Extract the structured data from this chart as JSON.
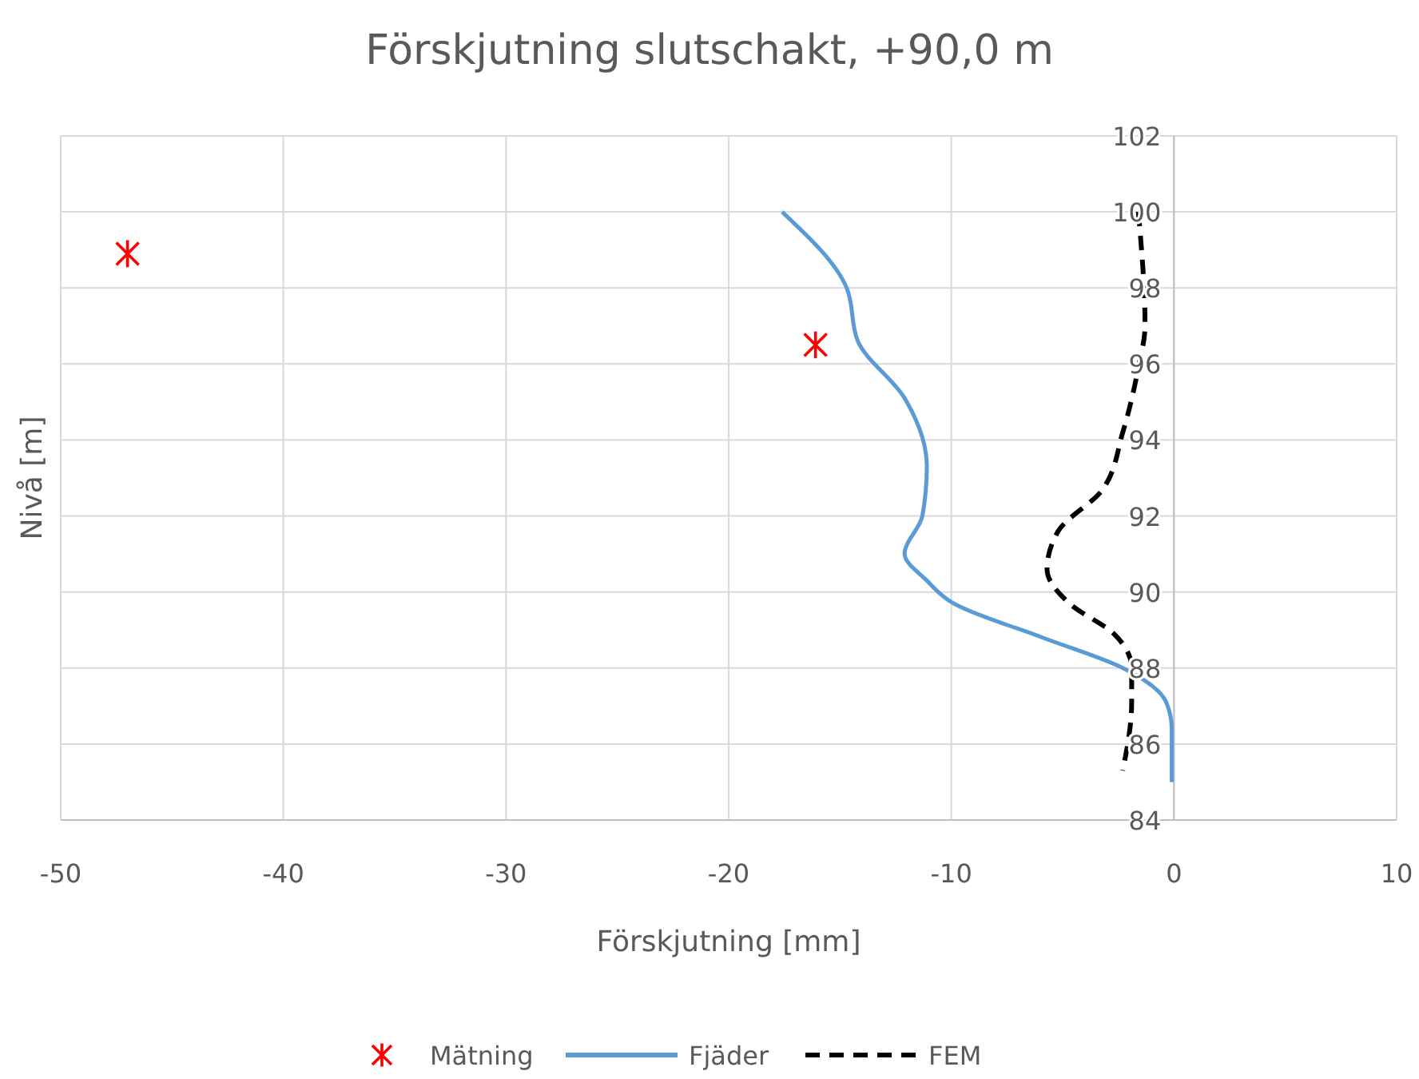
{
  "chart_data": {
    "type": "line",
    "title": "Förskjutning slutschakt, +90,0 m",
    "xlabel": "Förskjutning [mm]",
    "ylabel": "Nivå [m]",
    "xlim": [
      -50,
      10
    ],
    "xticks": [
      -50,
      -40,
      -30,
      -20,
      -10,
      0,
      10
    ],
    "ylim": [
      84,
      102
    ],
    "yticks": [
      84,
      86,
      88,
      90,
      92,
      94,
      96,
      98,
      100,
      102
    ],
    "grid": true,
    "legend": "bottom",
    "series": [
      {
        "name": "Mätning",
        "type": "scatter",
        "marker": "cross",
        "color": "#ff0000",
        "x": [
          -47.0,
          -16.1
        ],
        "values": [
          98.9,
          96.5
        ]
      },
      {
        "name": "Fjäder",
        "marker": "none",
        "line_style": "solid",
        "color": "#5b9bd5",
        "x": [
          -17.6,
          -14.7,
          -14.2,
          -12.1,
          -11.1,
          -11.3,
          -12.1,
          -11.1,
          -9.9,
          -5.9,
          -2.3,
          -0.35,
          -0.1,
          -0.1
        ],
        "values": [
          100,
          98,
          96.6,
          95.1,
          93.3,
          92,
          91,
          90.3,
          89.7,
          88.8,
          88,
          87.1,
          86.4,
          85
        ]
      },
      {
        "name": "FEM",
        "marker": "none",
        "line_style": "dashed",
        "color": "#000000",
        "x": [
          -1.6,
          -1.3,
          -1.6,
          -2.3,
          -3.2,
          -5.2,
          -5.7,
          -4.7,
          -2.7,
          -1.9,
          -1.9,
          -2.3
        ],
        "values": [
          100,
          97,
          95.9,
          94.2,
          92.7,
          91.6,
          90.6,
          89.7,
          88.9,
          88,
          87.1,
          85.3
        ]
      }
    ]
  }
}
